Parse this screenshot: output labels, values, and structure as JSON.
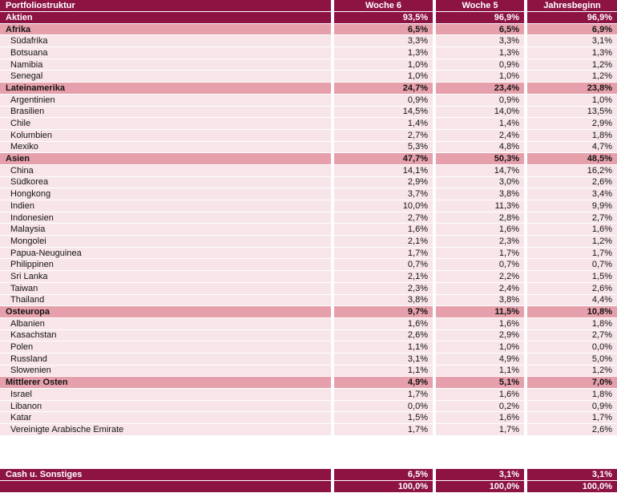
{
  "header": {
    "title": "Portfoliostruktur",
    "columns": [
      "Woche 6",
      "Woche 5",
      "Jahresbeginn"
    ]
  },
  "rows": [
    {
      "type": "dark",
      "label": "Aktien",
      "values": [
        "93,5%",
        "96,9%",
        "96,9%"
      ]
    },
    {
      "type": "section",
      "label": "Afrika",
      "values": [
        "6,5%",
        "6,5%",
        "6,9%"
      ]
    },
    {
      "type": "item",
      "label": "Südafrika",
      "values": [
        "3,3%",
        "3,3%",
        "3,1%"
      ]
    },
    {
      "type": "item",
      "label": "Botsuana",
      "values": [
        "1,3%",
        "1,3%",
        "1,3%"
      ]
    },
    {
      "type": "item",
      "label": "Namibia",
      "values": [
        "1,0%",
        "0,9%",
        "1,2%"
      ]
    },
    {
      "type": "item",
      "label": "Senegal",
      "values": [
        "1,0%",
        "1,0%",
        "1,2%"
      ]
    },
    {
      "type": "section",
      "label": "Lateinamerika",
      "values": [
        "24,7%",
        "23,4%",
        "23,8%"
      ]
    },
    {
      "type": "item",
      "label": "Argentinien",
      "values": [
        "0,9%",
        "0,9%",
        "1,0%"
      ]
    },
    {
      "type": "item",
      "label": "Brasilien",
      "values": [
        "14,5%",
        "14,0%",
        "13,5%"
      ]
    },
    {
      "type": "item",
      "label": "Chile",
      "values": [
        "1,4%",
        "1,4%",
        "2,9%"
      ]
    },
    {
      "type": "item",
      "label": "Kolumbien",
      "values": [
        "2,7%",
        "2,4%",
        "1,8%"
      ]
    },
    {
      "type": "item",
      "label": "Mexiko",
      "values": [
        "5,3%",
        "4,8%",
        "4,7%"
      ]
    },
    {
      "type": "section",
      "label": "Asien",
      "values": [
        "47,7%",
        "50,3%",
        "48,5%"
      ]
    },
    {
      "type": "item",
      "label": "China",
      "values": [
        "14,1%",
        "14,7%",
        "16,2%"
      ]
    },
    {
      "type": "item",
      "label": "Südkorea",
      "values": [
        "2,9%",
        "3,0%",
        "2,6%"
      ]
    },
    {
      "type": "item",
      "label": "Hongkong",
      "values": [
        "3,7%",
        "3,8%",
        "3,4%"
      ]
    },
    {
      "type": "item",
      "label": "Indien",
      "values": [
        "10,0%",
        "11,3%",
        "9,9%"
      ]
    },
    {
      "type": "item",
      "label": "Indonesien",
      "values": [
        "2,7%",
        "2,8%",
        "2,7%"
      ]
    },
    {
      "type": "item",
      "label": "Malaysia",
      "values": [
        "1,6%",
        "1,6%",
        "1,6%"
      ]
    },
    {
      "type": "item",
      "label": "Mongolei",
      "values": [
        "2,1%",
        "2,3%",
        "1,2%"
      ]
    },
    {
      "type": "item",
      "label": "Papua-Neuguinea",
      "values": [
        "1,7%",
        "1,7%",
        "1,7%"
      ]
    },
    {
      "type": "item",
      "label": "Philippinen",
      "values": [
        "0,7%",
        "0,7%",
        "0,7%"
      ]
    },
    {
      "type": "item",
      "label": "Sri Lanka",
      "values": [
        "2,1%",
        "2,2%",
        "1,5%"
      ]
    },
    {
      "type": "item",
      "label": "Taiwan",
      "values": [
        "2,3%",
        "2,4%",
        "2,6%"
      ]
    },
    {
      "type": "item",
      "label": "Thailand",
      "values": [
        "3,8%",
        "3,8%",
        "4,4%"
      ]
    },
    {
      "type": "section",
      "label": "Osteuropa",
      "values": [
        "9,7%",
        "11,5%",
        "10,8%"
      ]
    },
    {
      "type": "item",
      "label": "Albanien",
      "values": [
        "1,6%",
        "1,6%",
        "1,8%"
      ]
    },
    {
      "type": "item",
      "label": "Kasachstan",
      "values": [
        "2,6%",
        "2,9%",
        "2,7%"
      ]
    },
    {
      "type": "item",
      "label": "Polen",
      "values": [
        "1,1%",
        "1,0%",
        "0,0%"
      ]
    },
    {
      "type": "item",
      "label": "Russland",
      "values": [
        "3,1%",
        "4,9%",
        "5,0%"
      ]
    },
    {
      "type": "item",
      "label": "Slowenien",
      "values": [
        "1,1%",
        "1,1%",
        "1,2%"
      ]
    },
    {
      "type": "section",
      "label": "Mittlerer Osten",
      "values": [
        "4,9%",
        "5,1%",
        "7,0%"
      ]
    },
    {
      "type": "item",
      "label": "Israel",
      "values": [
        "1,7%",
        "1,6%",
        "1,8%"
      ]
    },
    {
      "type": "item",
      "label": "Libanon",
      "values": [
        "0,0%",
        "0,2%",
        "0,9%"
      ]
    },
    {
      "type": "item",
      "label": "Katar",
      "values": [
        "1,5%",
        "1,6%",
        "1,7%"
      ]
    },
    {
      "type": "item",
      "label": "Vereinigte Arabische Emirate",
      "values": [
        "1,7%",
        "1,7%",
        "2,6%"
      ]
    }
  ],
  "footer": [
    {
      "type": "dark",
      "label": "Cash u. Sonstiges",
      "values": [
        "6,5%",
        "3,1%",
        "3,1%"
      ]
    },
    {
      "type": "dark",
      "label": "",
      "values": [
        "100,0%",
        "100,0%",
        "100,0%"
      ]
    }
  ],
  "colors": {
    "dark": "#8D1343",
    "section": "#E6A0AC",
    "row": "#F7E5E9",
    "text_light": "#FFFFFF",
    "text_dark": "#141414"
  }
}
